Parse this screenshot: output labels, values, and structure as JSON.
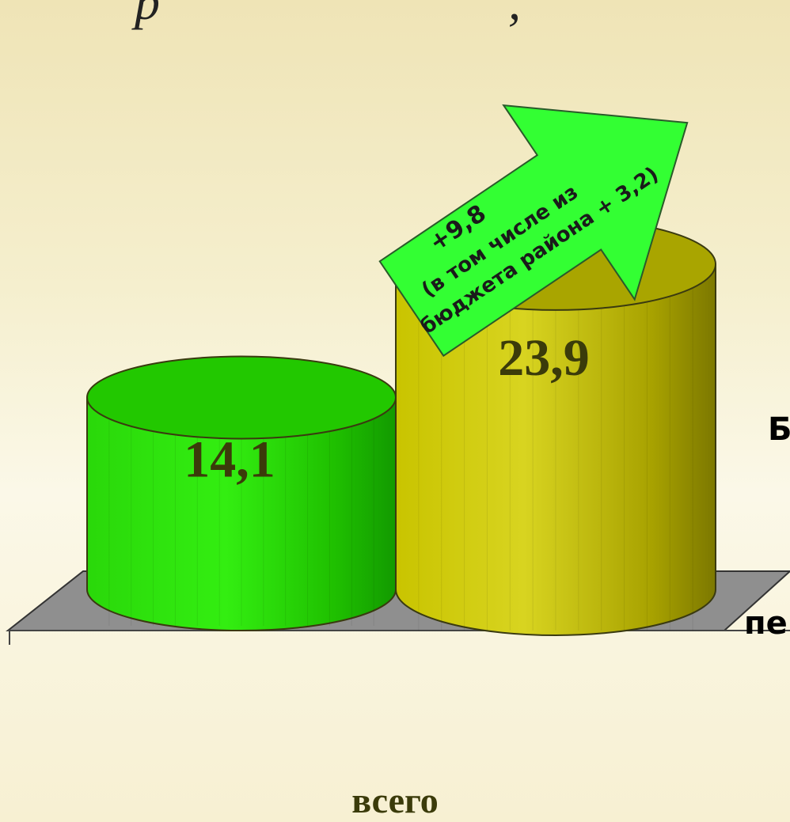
{
  "chart_data": {
    "type": "bar",
    "categories": [
      "всего"
    ],
    "series": [
      {
        "values": [
          14.1
        ],
        "color": "#22cc00",
        "label": "14,1"
      },
      {
        "values": [
          23.9
        ],
        "color": "#c6c400",
        "label": "23,9"
      }
    ],
    "ylim": [
      0,
      30
    ],
    "grid": false,
    "annotation": {
      "line1": "+9,8",
      "line2": "(в том числе из",
      "line3": "бюджета района + 3,2)",
      "color": "#33ff33"
    }
  },
  "side_labels": {
    "right_upper": "Б",
    "right_lower": "пе"
  },
  "title_fragment": "р",
  "title_fragment_end": ","
}
